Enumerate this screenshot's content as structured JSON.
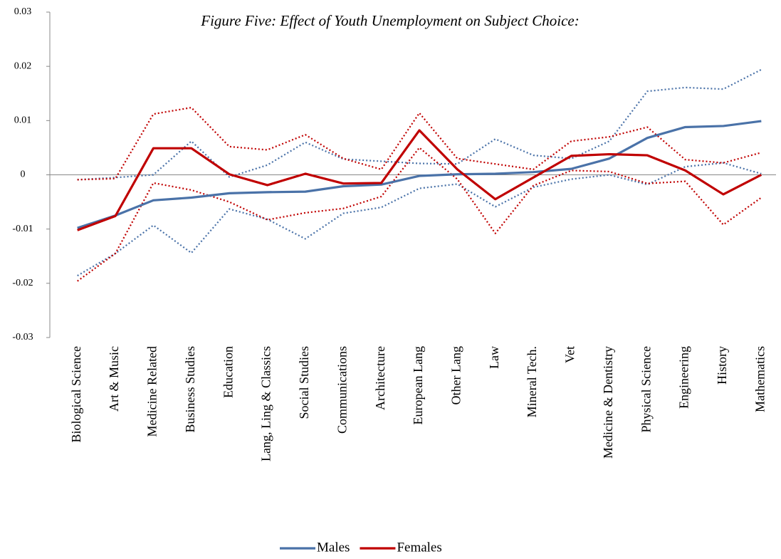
{
  "chart_data": {
    "type": "line",
    "title": "Figure Five: Effect of  Youth Unemployment on Subject Choice:",
    "categories": [
      "Biological Science",
      "Art & Music",
      "Medicine Related",
      "Business Studies",
      "Education",
      "Lang, Ling & Classics",
      "Social Studies",
      "Communications",
      "Architecture",
      "European Lang",
      "Other Lang",
      "Law",
      "Mineral Tech.",
      "Vet",
      "Medicine & Dentistry",
      "Physical Science",
      "Engineering",
      "History",
      "Mathematics"
    ],
    "series": [
      {
        "name": "Males",
        "color": "#4a72a8",
        "values": [
          -0.0098,
          -0.0075,
          -0.0047,
          -0.0042,
          -0.0034,
          -0.0032,
          -0.0031,
          -0.0021,
          -0.0018,
          -0.0002,
          0.0001,
          0.0002,
          0.0005,
          0.0011,
          0.003,
          0.0068,
          0.0088,
          0.009,
          0.0099
        ],
        "upper": [
          -0.0009,
          -0.0005,
          0.0,
          0.0062,
          -0.0004,
          0.0018,
          0.006,
          0.0029,
          0.0025,
          0.0021,
          0.002,
          0.0066,
          0.0036,
          0.003,
          0.0062,
          0.0154,
          0.0161,
          0.0158,
          0.0194
        ],
        "lower": [
          -0.0186,
          -0.0145,
          -0.0093,
          -0.0144,
          -0.0063,
          -0.0082,
          -0.0118,
          -0.0071,
          -0.006,
          -0.0025,
          -0.0017,
          -0.0059,
          -0.0023,
          -0.0008,
          0.0,
          -0.0018,
          0.0015,
          0.0022,
          0.0002
        ]
      },
      {
        "name": "Females",
        "color": "#c00000",
        "values": [
          -0.0102,
          -0.0076,
          0.0049,
          0.0049,
          0.0001,
          -0.0019,
          0.0002,
          -0.0016,
          -0.0015,
          0.0082,
          0.001,
          -0.0045,
          -0.0005,
          0.0035,
          0.0038,
          0.0036,
          0.0008,
          -0.0036,
          0.0
        ],
        "upper": [
          -0.0009,
          -0.0007,
          0.0112,
          0.0124,
          0.0052,
          0.0046,
          0.0074,
          0.003,
          0.001,
          0.0114,
          0.003,
          0.002,
          0.001,
          0.0062,
          0.007,
          0.0088,
          0.0028,
          0.0022,
          0.0041
        ],
        "lower": [
          -0.0196,
          -0.0145,
          -0.0015,
          -0.0028,
          -0.005,
          -0.0083,
          -0.007,
          -0.0062,
          -0.004,
          0.005,
          -0.0008,
          -0.0108,
          -0.002,
          0.0008,
          0.0006,
          -0.0016,
          -0.0012,
          -0.0092,
          -0.0042
        ]
      }
    ],
    "ylim": [
      -0.03,
      0.03
    ],
    "yticks": [
      -0.03,
      -0.02,
      -0.01,
      0,
      0.01,
      0.02,
      0.03
    ],
    "legend": "bottom"
  }
}
